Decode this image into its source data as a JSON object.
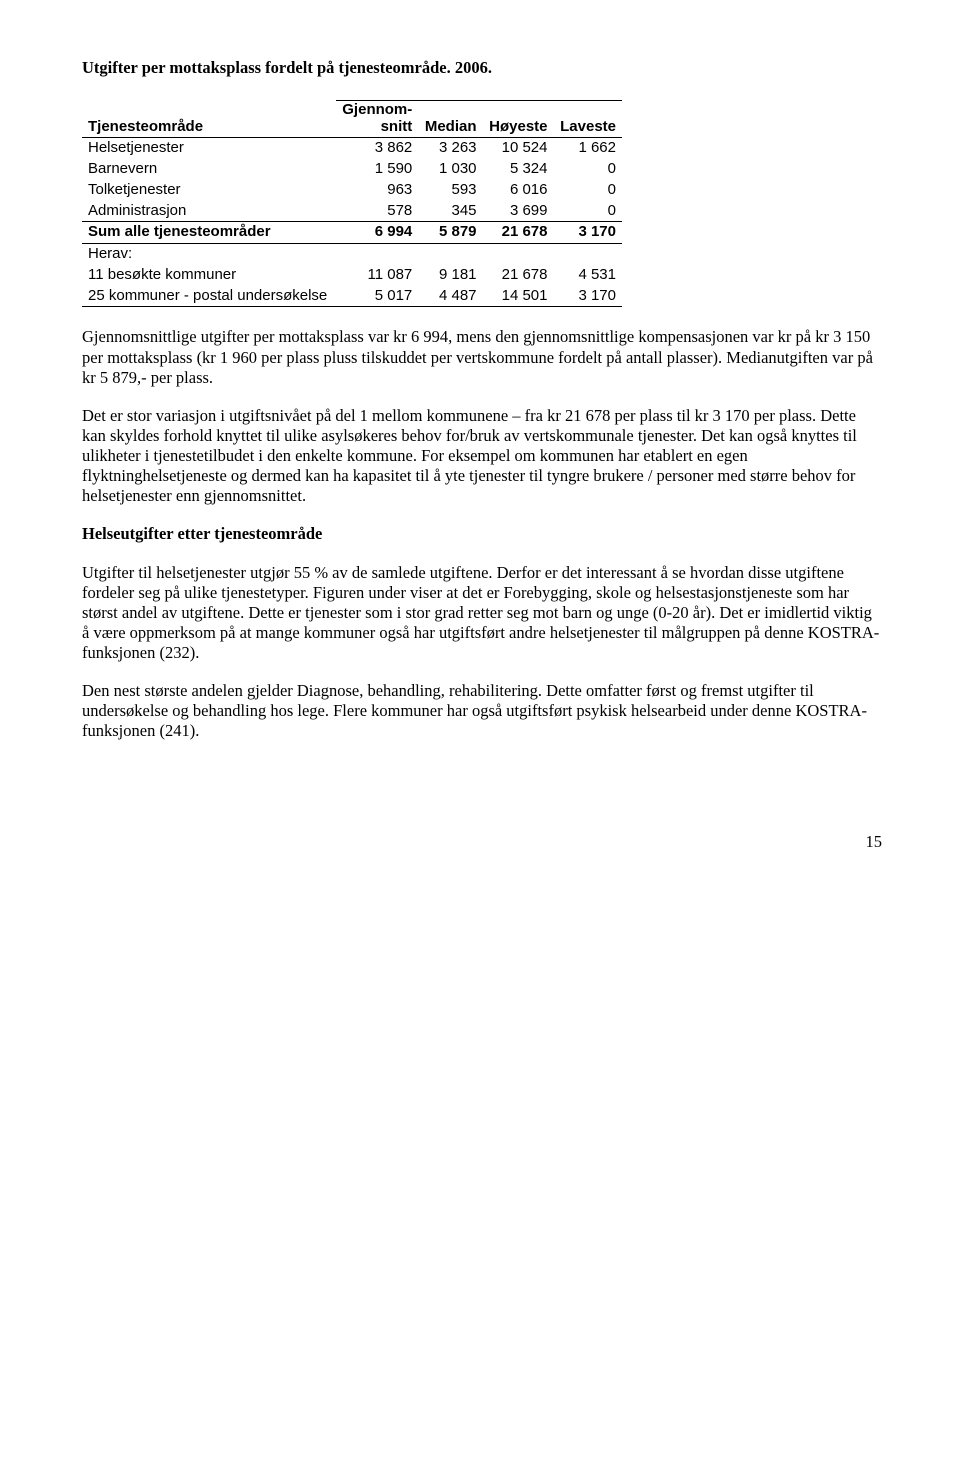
{
  "title": "Utgifter per mottaksplass fordelt på tjenesteområde. 2006.",
  "table": {
    "columns": {
      "c0": "Tjenesteområde",
      "c1a": "Gjennom-",
      "c1b": "snitt",
      "c2": "Median",
      "c3": "Høyeste",
      "c4": "Laveste"
    },
    "rows": [
      {
        "label": "Helsetjenester",
        "v": [
          "3 862",
          "3 263",
          "10 524",
          "1 662"
        ]
      },
      {
        "label": "Barnevern",
        "v": [
          "1 590",
          "1 030",
          "5 324",
          "0"
        ]
      },
      {
        "label": "Tolketjenester",
        "v": [
          "963",
          "593",
          "6 016",
          "0"
        ]
      },
      {
        "label": "Administrasjon",
        "v": [
          "578",
          "345",
          "3 699",
          "0"
        ]
      }
    ],
    "sum": {
      "label": "Sum alle tjenesteområder",
      "v": [
        "6 994",
        "5 879",
        "21 678",
        "3 170"
      ]
    },
    "herav_label": "Herav:",
    "sub": [
      {
        "label": "11 besøkte kommuner",
        "v": [
          "11 087",
          "9 181",
          "21 678",
          "4 531"
        ]
      },
      {
        "label": "25 kommuner - postal undersøkelse",
        "v": [
          "5 017",
          "4 487",
          "14 501",
          "3 170"
        ]
      }
    ]
  },
  "para1": "Gjennomsnittlige utgifter per mottaksplass var kr 6 994, mens den gjennomsnittlige kompensasjonen var kr på kr 3 150 per mottaksplass (kr 1 960 per plass pluss tilskuddet per vertskommune fordelt på antall plasser). Medianutgiften var på kr 5 879,- per plass.",
  "para2": "Det er stor variasjon i utgiftsnivået på del 1 mellom kommunene – fra kr 21 678 per plass til kr 3 170 per plass. Dette kan skyldes forhold knyttet til ulike asylsøkeres behov for/bruk av vertskommunale tjenester. Det kan også knyttes til ulikheter i tjenestetilbudet i den enkelte kommune. For eksempel om kommunen har etablert en egen flyktninghelsetjeneste og dermed kan ha kapasitet til å yte tjenester til tyngre brukere / personer med større behov for helsetjenester enn gjennomsnittet.",
  "subheading": "Helseutgifter etter tjenesteområde",
  "para3": "Utgifter til helsetjenester utgjør 55 % av de samlede utgiftene. Derfor er det interessant å se hvordan disse utgiftene fordeler seg på ulike tjenestetyper. Figuren under viser at det er Forebygging, skole og helsestasjonstjeneste som har størst andel av utgiftene. Dette er tjenester som i stor grad retter seg mot barn og unge (0-20 år). Det er imidlertid viktig å være oppmerksom på at mange kommuner også har utgiftsført andre helsetjenester til målgruppen på denne KOSTRA-funksjonen (232).",
  "para4": "Den nest største andelen gjelder Diagnose, behandling, rehabilitering. Dette omfatter først og fremst utgifter til undersøkelse og behandling hos lege. Flere kommuner har også utgiftsført psykisk helsearbeid under denne KOSTRA-funksjonen (241).",
  "pagenum": "15"
}
